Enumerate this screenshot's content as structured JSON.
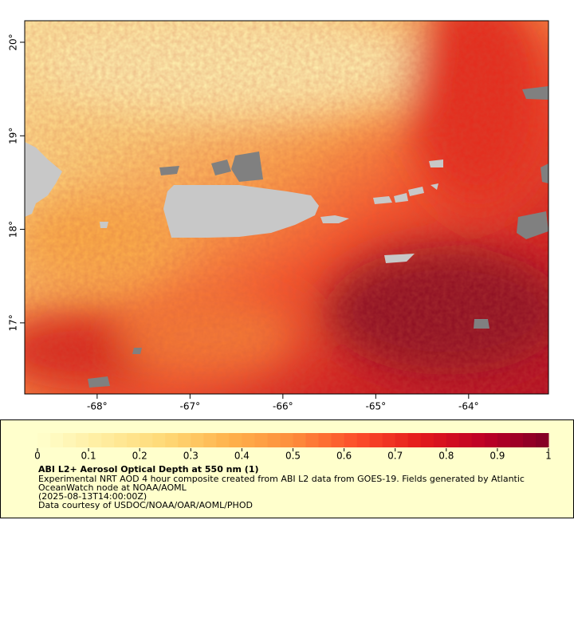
{
  "chart_data": {
    "type": "map",
    "xlim": [
      -68.78,
      -63.14
    ],
    "ylim": [
      16.24,
      20.23
    ],
    "xticks": [
      {
        "value": -68,
        "label": "-68°"
      },
      {
        "value": -67,
        "label": "-67°"
      },
      {
        "value": -66,
        "label": "-66°"
      },
      {
        "value": -65,
        "label": "-65°"
      },
      {
        "value": -64,
        "label": "-64°"
      }
    ],
    "yticks": [
      {
        "value": 17,
        "label": "17°"
      },
      {
        "value": 18,
        "label": "18°"
      },
      {
        "value": 19,
        "label": "19°"
      },
      {
        "value": 20,
        "label": "20°"
      }
    ],
    "colorbar": {
      "lim": [
        0,
        1
      ],
      "ticks": [
        0,
        0.1,
        0.2,
        0.3,
        0.4,
        0.5,
        0.6,
        0.7,
        0.8,
        0.9,
        1
      ],
      "colors": [
        "#ffffcc",
        "#ffeda0",
        "#fed976",
        "#feb24c",
        "#fd8d3c",
        "#fc4e2a",
        "#e31a1c",
        "#bd0026",
        "#800026"
      ]
    },
    "title": "ABI L2+ Aerosol Optical Depth at 550 nm (1)",
    "notes": [
      "Experimental NRT AOD 4 hour composite created from ABI L2 data from GOES-19. Fields generated by Atlantic",
      "OceanWatch node at NOAA/AOML",
      "(2025-08-13T14:00:00Z)",
      "Data courtesy of USDOC/NOAA/OAR/AOML/PHOD"
    ]
  }
}
